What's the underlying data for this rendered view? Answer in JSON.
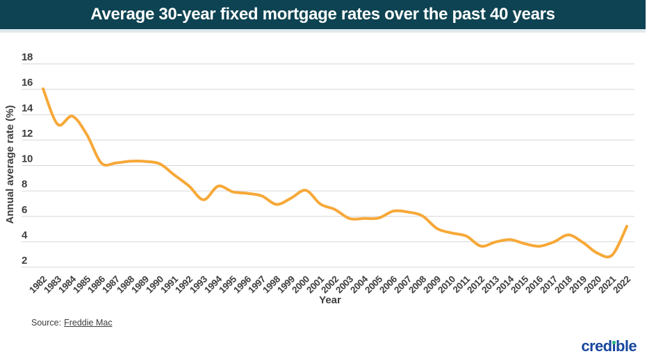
{
  "chart_data": {
    "type": "line",
    "title": "Average 30-year fixed mortgage rates over the past 40 years",
    "xlabel": "Year",
    "ylabel": "Annual average rate (%)",
    "ylim": [
      2,
      18
    ],
    "yticks": [
      18,
      16,
      14,
      12,
      10,
      8,
      6,
      4,
      2
    ],
    "grid": true,
    "legend": "none",
    "x": [
      1982,
      1983,
      1984,
      1985,
      1986,
      1987,
      1988,
      1989,
      1990,
      1991,
      1992,
      1993,
      1994,
      1995,
      1996,
      1997,
      1998,
      1999,
      2000,
      2001,
      2002,
      2003,
      2004,
      2005,
      2006,
      2007,
      2008,
      2009,
      2010,
      2011,
      2012,
      2013,
      2014,
      2015,
      2016,
      2017,
      2018,
      2019,
      2020,
      2021,
      2022
    ],
    "series": [
      {
        "name": "30-year fixed mortgage rate",
        "color": "#f7a838",
        "values": [
          16.04,
          13.24,
          13.88,
          12.43,
          10.19,
          10.21,
          10.34,
          10.32,
          10.13,
          9.25,
          8.39,
          7.31,
          8.38,
          7.93,
          7.81,
          7.6,
          6.94,
          7.44,
          8.05,
          6.97,
          6.54,
          5.83,
          5.84,
          5.87,
          6.41,
          6.34,
          6.03,
          5.04,
          4.69,
          4.45,
          3.66,
          3.98,
          4.17,
          3.85,
          3.65,
          3.99,
          4.54,
          3.94,
          3.1,
          2.96,
          5.22
        ]
      }
    ]
  },
  "header": {
    "background": "#0d4352"
  },
  "footer": {
    "source_prefix": "Source:",
    "source_link": "Freddie Mac",
    "logo_text": "credible",
    "logo_color": "#17479e",
    "logo_dot_color": "#2eb77d"
  },
  "style_colors": {
    "grid": "#d6d6d6",
    "tick_text": "#3d3d3d",
    "line": "#f7a838"
  }
}
